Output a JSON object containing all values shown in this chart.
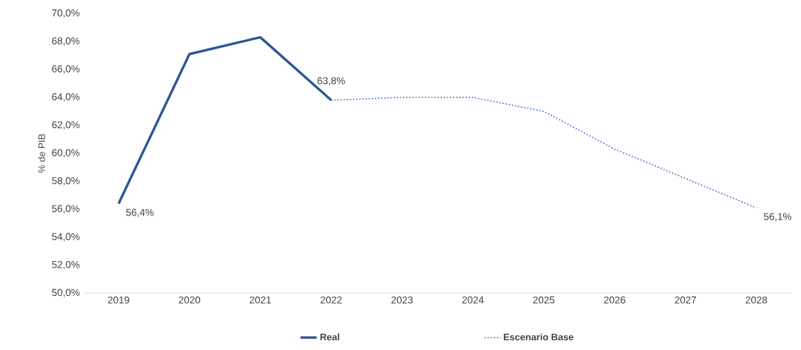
{
  "chart_data": {
    "type": "line",
    "ylabel": "% de PIB",
    "categories": [
      "2019",
      "2020",
      "2021",
      "2022",
      "2023",
      "2024",
      "2025",
      "2026",
      "2027",
      "2028"
    ],
    "series": [
      {
        "name": "Real",
        "color": "#2f5597",
        "line_style": "solid",
        "values": [
          56.4,
          67.1,
          68.3,
          63.8,
          null,
          null,
          null,
          null,
          null,
          null
        ],
        "value_labels": [
          "56,4%",
          null,
          null,
          "63,8%",
          null,
          null,
          null,
          null,
          null,
          null
        ]
      },
      {
        "name": "Escenario Base",
        "color": "#4472c4",
        "line_style": "dotted",
        "values": [
          null,
          null,
          null,
          63.8,
          64.0,
          64.0,
          63.0,
          60.3,
          58.2,
          56.1
        ],
        "value_labels": [
          null,
          null,
          null,
          null,
          null,
          null,
          null,
          null,
          null,
          "56,1%"
        ]
      }
    ],
    "ylim": [
      50,
      70
    ],
    "yticks": [
      {
        "value": 50,
        "label": "50,0%"
      },
      {
        "value": 52,
        "label": "52,0%"
      },
      {
        "value": 54,
        "label": "54,0%"
      },
      {
        "value": 56,
        "label": "56,0%"
      },
      {
        "value": 58,
        "label": "58,0%"
      },
      {
        "value": 60,
        "label": "60,0%"
      },
      {
        "value": 62,
        "label": "62,0%"
      },
      {
        "value": 64,
        "label": "64,0%"
      },
      {
        "value": 66,
        "label": "66,0%"
      },
      {
        "value": 68,
        "label": "68,0%"
      },
      {
        "value": 70,
        "label": "70,0%"
      }
    ],
    "grid": false,
    "legend": "bottom",
    "marker": "none"
  }
}
